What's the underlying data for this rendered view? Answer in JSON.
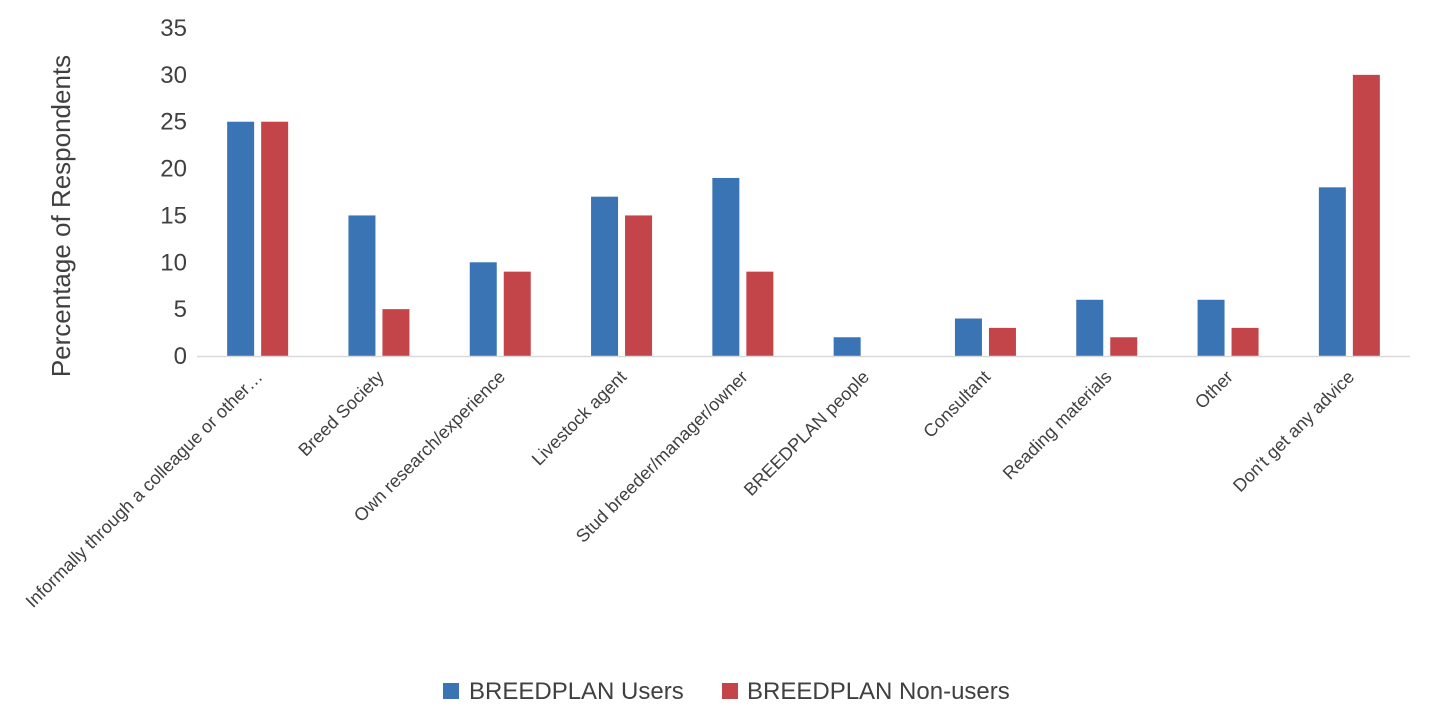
{
  "chart_data": {
    "type": "bar",
    "title": "",
    "xlabel": "",
    "ylabel": "Percentage of Respondents",
    "ylim": [
      0,
      35
    ],
    "yticks": [
      0,
      5,
      10,
      15,
      20,
      25,
      30,
      35
    ],
    "grid": false,
    "legend_position": "bottom",
    "categories": [
      "Informally through a colleague or other…",
      "Breed Society",
      "Own research/experience",
      "Livestock agent",
      "Stud breeder/manager/owner",
      "BREEDPLAN people",
      "Consultant",
      "Reading materials",
      "Other",
      "Don't get any advice"
    ],
    "series": [
      {
        "name": "BREEDPLAN Users",
        "color": "#3a74b4",
        "values": [
          25,
          15,
          10,
          17,
          19,
          2,
          4,
          6,
          6,
          18
        ]
      },
      {
        "name": "BREEDPLAN Non-users",
        "color": "#c3454a",
        "values": [
          25,
          5,
          9,
          15,
          9,
          0,
          3,
          2,
          3,
          30
        ]
      }
    ]
  }
}
